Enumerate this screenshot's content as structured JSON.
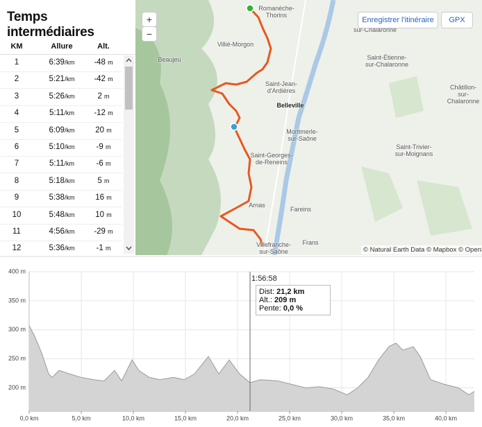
{
  "panel": {
    "title": "Temps intermédiaires",
    "columns": [
      "KM",
      "Allure",
      "Alt."
    ],
    "pace_unit": "/km",
    "alt_unit": "m",
    "rows": [
      [
        1,
        "6:39",
        -48
      ],
      [
        2,
        "5:21",
        -42
      ],
      [
        3,
        "5:26",
        2
      ],
      [
        4,
        "5:11",
        -12
      ],
      [
        5,
        "6:09",
        20
      ],
      [
        6,
        "5:10",
        -9
      ],
      [
        7,
        "5:11",
        -6
      ],
      [
        8,
        "5:18",
        5
      ],
      [
        9,
        "5:38",
        16
      ],
      [
        10,
        "5:48",
        10
      ],
      [
        11,
        "4:56",
        -29
      ],
      [
        12,
        "5:36",
        -1
      ]
    ]
  },
  "map": {
    "zoom_in": "+",
    "zoom_out": "−",
    "save": "Enregistrer l'itinéraire",
    "gpx": "GPX",
    "places": [
      "Romanèche-\nThorins",
      "Saint-Didier-\nsur-Chalaronne",
      "Villié-Morgon",
      "Beaujeu",
      "Saint-Étienne-\nsur-Chalaronne",
      "Saint-Jean-\nd'Ardières",
      "Belleville",
      "Châtillon-sur-\nChalaronne",
      "Montmerle-\nsur-Saône",
      "Saint-Georges-\nde-Reneins",
      "Saint-Trivier-\nsur-Moignans",
      "Arnas",
      "Fareins",
      "Frans",
      "Villefranche-\nsur-Saône"
    ],
    "attribution": "© Natural Earth Data © Mapbox © OpenStreetMap"
  },
  "chart_data": {
    "type": "area",
    "color": "#d4d4d4",
    "line_color": "#9a9a9a",
    "grid": true,
    "x": [
      0,
      0.53,
      1.2,
      1.87,
      2.2,
      2.87,
      3.87,
      5.0,
      6.2,
      7.2,
      8.2,
      8.87,
      9.87,
      10.53,
      11.53,
      12.53,
      13.87,
      14.87,
      15.87,
      17.2,
      18.2,
      19.2,
      20.2,
      21.2,
      22.2,
      23.87,
      25.2,
      26.53,
      27.87,
      29.2,
      30.53,
      31.53,
      32.53,
      33.53,
      34.53,
      35.2,
      35.87,
      36.87,
      37.53,
      38.53,
      39.87,
      41.2,
      42.2,
      42.73
    ],
    "values": [
      307,
      289,
      260,
      224,
      218,
      230,
      224,
      218,
      214,
      212,
      230,
      212,
      248,
      230,
      218,
      214,
      218,
      214,
      224,
      254,
      224,
      248,
      224,
      209,
      214,
      212,
      206,
      200,
      202,
      198,
      188,
      200,
      218,
      248,
      271,
      277,
      265,
      271,
      254,
      214,
      206,
      200,
      188,
      194
    ],
    "xlim": [
      0,
      42.73
    ],
    "ylim": [
      160,
      400
    ],
    "xticks": [
      {
        "value": 0,
        "label": "0,0 km"
      },
      {
        "value": 5,
        "label": "5,0 km"
      },
      {
        "value": 10,
        "label": "10,0 km"
      },
      {
        "value": 15,
        "label": "15,0 km"
      },
      {
        "value": 20,
        "label": "20,0 km"
      },
      {
        "value": 25,
        "label": "25,0 km"
      },
      {
        "value": 30,
        "label": "30,0 km"
      },
      {
        "value": 35,
        "label": "35,0 km"
      },
      {
        "value": 40,
        "label": "40,0 km"
      }
    ],
    "yticks": [
      {
        "value": 200,
        "label": "200 m"
      },
      {
        "value": 250,
        "label": "250 m"
      },
      {
        "value": 300,
        "label": "300 m"
      },
      {
        "value": 350,
        "label": "350 m"
      },
      {
        "value": 400,
        "label": "400 m"
      }
    ],
    "tooltip": {
      "x": 21.2,
      "time": "1:56:58",
      "lines": [
        {
          "label": "Dist:",
          "value": "21,2 km"
        },
        {
          "label": "Alt.:",
          "value": "209 m"
        },
        {
          "label": "Pente:",
          "value": "0,0 %"
        }
      ]
    }
  }
}
